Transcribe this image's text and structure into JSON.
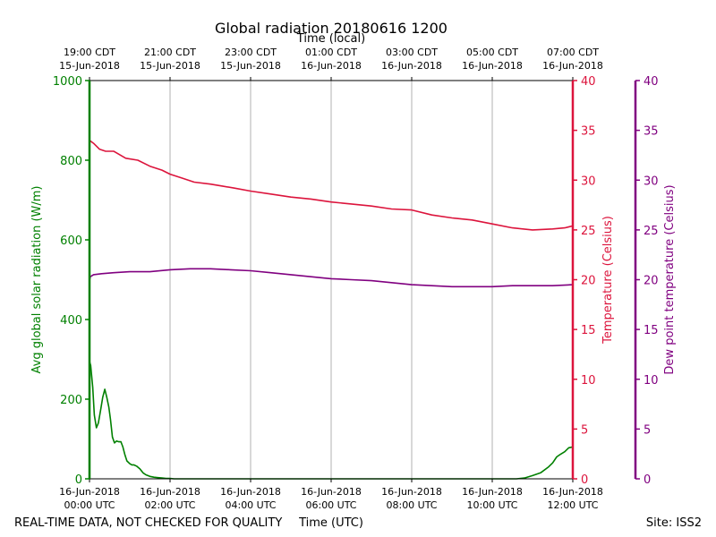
{
  "chart_data": {
    "type": "line",
    "title": "Global radiation 20180616 1200",
    "top_axis_label": "Time (local)",
    "xlabel": "Time (UTC)",
    "footer_left": "REAL-TIME DATA, NOT CHECKED FOR QUALITY",
    "footer_right": "Site: ISS2",
    "x_range_hours_utc": [
      0,
      12
    ],
    "bottom_ticks": [
      {
        "hour": 0,
        "line1": "16-Jun-2018",
        "line2": "00:00 UTC"
      },
      {
        "hour": 2,
        "line1": "16-Jun-2018",
        "line2": "02:00 UTC"
      },
      {
        "hour": 4,
        "line1": "16-Jun-2018",
        "line2": "04:00 UTC"
      },
      {
        "hour": 6,
        "line1": "16-Jun-2018",
        "line2": "06:00 UTC"
      },
      {
        "hour": 8,
        "line1": "16-Jun-2018",
        "line2": "08:00 UTC"
      },
      {
        "hour": 10,
        "line1": "16-Jun-2018",
        "line2": "10:00 UTC"
      },
      {
        "hour": 12,
        "line1": "16-Jun-2018",
        "line2": "12:00 UTC"
      }
    ],
    "top_ticks": [
      {
        "hour": 0,
        "line1": "19:00 CDT",
        "line2": "15-Jun-2018"
      },
      {
        "hour": 2,
        "line1": "21:00 CDT",
        "line2": "15-Jun-2018"
      },
      {
        "hour": 4,
        "line1": "23:00 CDT",
        "line2": "15-Jun-2018"
      },
      {
        "hour": 6,
        "line1": "01:00 CDT",
        "line2": "16-Jun-2018"
      },
      {
        "hour": 8,
        "line1": "03:00 CDT",
        "line2": "16-Jun-2018"
      },
      {
        "hour": 10,
        "line1": "05:00 CDT",
        "line2": "16-Jun-2018"
      },
      {
        "hour": 12,
        "line1": "07:00 CDT",
        "line2": "16-Jun-2018"
      }
    ],
    "axes": {
      "radiation": {
        "label": "Avg global solar radiation (W/m)",
        "range": [
          0,
          1000
        ],
        "ticks": [
          "0",
          "200",
          "400",
          "600",
          "800",
          "1000"
        ],
        "color": "#008000"
      },
      "temperature": {
        "label": "Temperature (Celsius)",
        "range": [
          0,
          40
        ],
        "ticks": [
          "0",
          "5",
          "10",
          "15",
          "20",
          "25",
          "30",
          "35",
          "40"
        ],
        "color": "#dc143c"
      },
      "dewpoint": {
        "label": "Dew point temperature (Celsius)",
        "range": [
          0,
          40
        ],
        "ticks": [
          "0",
          "5",
          "10",
          "15",
          "20",
          "25",
          "30",
          "35",
          "40"
        ],
        "color": "#800080"
      }
    },
    "series": [
      {
        "name": "Avg global solar radiation",
        "axis": "radiation",
        "color": "#008000",
        "x": [
          0,
          0.03,
          0.08,
          0.12,
          0.17,
          0.22,
          0.28,
          0.33,
          0.38,
          0.43,
          0.48,
          0.52,
          0.57,
          0.62,
          0.67,
          0.73,
          0.78,
          0.83,
          0.88,
          0.93,
          1.0,
          1.05,
          1.1,
          1.17,
          1.25,
          1.33,
          1.4,
          1.5,
          1.6,
          1.7,
          1.8,
          1.9,
          2.0,
          2.1,
          2.3,
          2.6,
          3,
          4,
          6,
          8,
          10,
          10.6,
          10.8,
          11.0,
          11.2,
          11.4,
          11.5,
          11.6,
          11.7,
          11.8,
          11.9,
          12.0
        ],
        "y": [
          295,
          285,
          230,
          160,
          128,
          140,
          175,
          205,
          225,
          205,
          180,
          150,
          105,
          90,
          95,
          93,
          93,
          80,
          60,
          45,
          38,
          35,
          35,
          32,
          25,
          15,
          10,
          6,
          4,
          3,
          2,
          1,
          1,
          0,
          0,
          0,
          0,
          0,
          0,
          0,
          0,
          0,
          2,
          8,
          15,
          30,
          40,
          55,
          62,
          68,
          78,
          80
        ]
      },
      {
        "name": "Temperature",
        "axis": "temperature",
        "color": "#dc143c",
        "x": [
          0,
          0.1,
          0.25,
          0.4,
          0.6,
          0.9,
          1.2,
          1.5,
          1.8,
          2.0,
          2.3,
          2.6,
          3.0,
          3.3,
          3.6,
          4.0,
          4.5,
          5.0,
          5.5,
          6.0,
          6.5,
          7.0,
          7.5,
          8.0,
          8.5,
          9.0,
          9.5,
          10.0,
          10.5,
          11.0,
          11.5,
          11.8,
          12.0
        ],
        "y": [
          34.0,
          33.7,
          33.1,
          32.9,
          32.9,
          32.2,
          32.0,
          31.4,
          31.0,
          30.6,
          30.2,
          29.8,
          29.6,
          29.4,
          29.2,
          28.9,
          28.6,
          28.3,
          28.1,
          27.8,
          27.6,
          27.4,
          27.1,
          27.0,
          26.5,
          26.2,
          26.0,
          25.6,
          25.2,
          25.0,
          25.1,
          25.2,
          25.4
        ]
      },
      {
        "name": "Dew point temperature",
        "axis": "dewpoint",
        "color": "#800080",
        "x": [
          0,
          0.02,
          0.1,
          0.3,
          0.6,
          1.0,
          1.5,
          2.0,
          2.5,
          3.0,
          3.5,
          4.0,
          4.5,
          5.0,
          5.5,
          6.0,
          6.5,
          7.0,
          7.5,
          8.0,
          8.5,
          9.0,
          9.5,
          10.0,
          10.5,
          11.0,
          11.5,
          12.0
        ],
        "y": [
          19.9,
          20.3,
          20.5,
          20.6,
          20.7,
          20.8,
          20.8,
          21.0,
          21.1,
          21.1,
          21.0,
          20.9,
          20.7,
          20.5,
          20.3,
          20.1,
          20.0,
          19.9,
          19.7,
          19.5,
          19.4,
          19.3,
          19.3,
          19.3,
          19.4,
          19.4,
          19.4,
          19.5
        ]
      }
    ]
  }
}
